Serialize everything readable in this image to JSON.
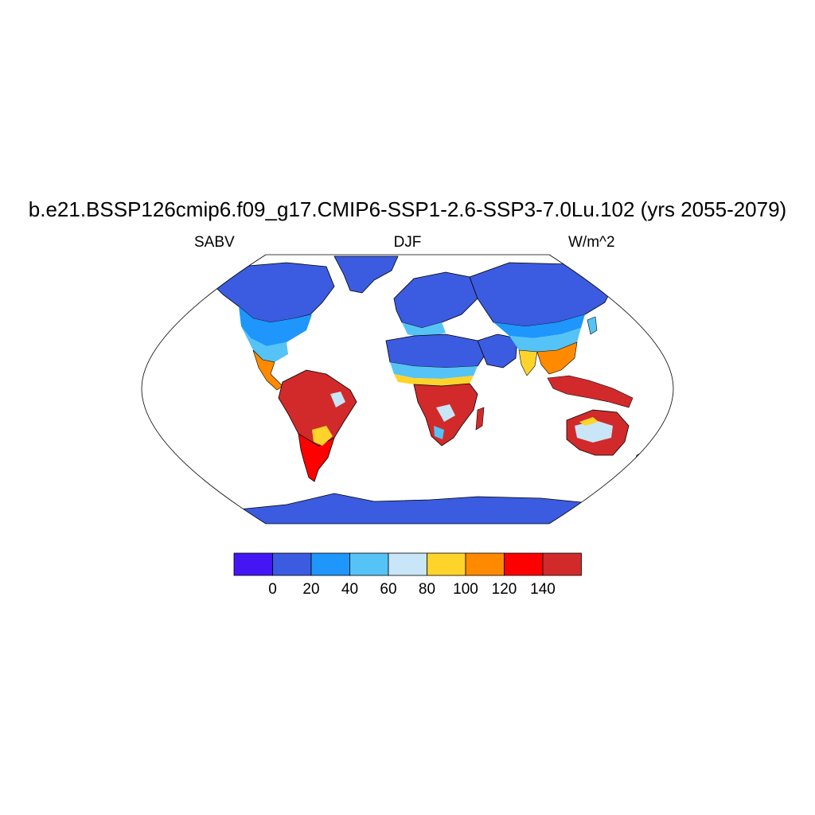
{
  "title": "b.e21.BSSP126cmip6.f09_g17.CMIP6-SSP1-2.6-SSP3-7.0Lu.102 (yrs 2055-2079)",
  "left_label": "SABV",
  "center_label": "DJF",
  "right_label": "W/m^2",
  "colorbar": {
    "colors": [
      "#4416f4",
      "#3b5be0",
      "#1e96fb",
      "#55c3f5",
      "#c8e6f7",
      "#ffd42a",
      "#ff8a00",
      "#ff0000",
      "#d22a2a"
    ],
    "tick_labels": [
      "0",
      "20",
      "40",
      "60",
      "80",
      "100",
      "120",
      "140"
    ]
  },
  "map_colors": {
    "ocean": "#ffffff",
    "coast": "#000000"
  }
}
